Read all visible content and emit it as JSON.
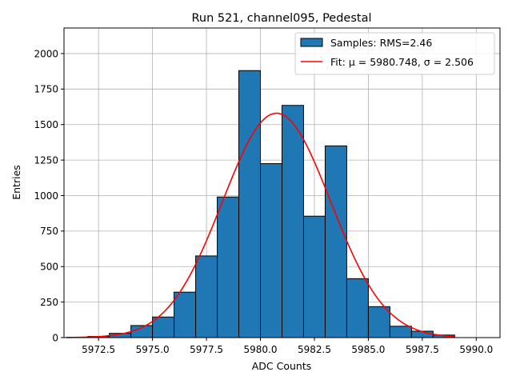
{
  "chart_data": {
    "type": "bar",
    "title": "Run 521, channel095, Pedestal",
    "xlabel": "ADC Counts",
    "ylabel": "Entries",
    "xlim": [
      5970.9,
      5991.1
    ],
    "ylim": [
      0,
      2180
    ],
    "xticks": [
      5972.5,
      5975.0,
      5977.5,
      5980.0,
      5982.5,
      5985.0,
      5987.5,
      5990.0
    ],
    "xtick_labels": [
      "5972.5",
      "5975.0",
      "5977.5",
      "5980.0",
      "5982.5",
      "5985.0",
      "5987.5",
      "5990.0"
    ],
    "yticks": [
      0,
      250,
      500,
      750,
      1000,
      1250,
      1500,
      1750,
      2000
    ],
    "ytick_labels": [
      "0",
      "250",
      "500",
      "750",
      "1000",
      "1250",
      "1500",
      "1750",
      "2000"
    ],
    "grid": true,
    "bin_edges": [
      5972.0,
      5973.0,
      5974.0,
      5975.0,
      5976.0,
      5977.0,
      5978.0,
      5979.0,
      5980.0,
      5981.0,
      5982.0,
      5983.0,
      5984.0,
      5985.0,
      5986.0,
      5987.0,
      5988.0,
      5989.0
    ],
    "counts": [
      8,
      30,
      85,
      145,
      320,
      575,
      990,
      1880,
      1225,
      1635,
      855,
      1350,
      415,
      218,
      80,
      45,
      18
    ],
    "fit": {
      "type": "gaussian",
      "mu": 5980.748,
      "sigma": 2.506,
      "amplitude": 1580,
      "x_range": [
        5971.0,
        5989.0
      ]
    },
    "legend": {
      "position": "top-right",
      "entries": [
        "Samples: RMS=2.46",
        "Fit: μ = 5980.748, σ = 2.506"
      ]
    },
    "colors": {
      "bars": "#1f77b4",
      "fit": "#ff0000",
      "edge": "#000000",
      "grid": "#b0b0b0"
    }
  }
}
